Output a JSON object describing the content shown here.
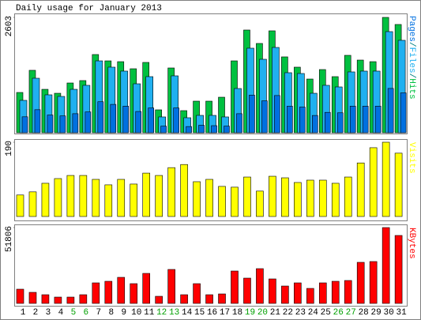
{
  "chart_data": [
    {
      "type": "bar",
      "title": "Daily usage for January 2013",
      "ylim": [
        0,
        2603
      ],
      "yticks": [
        2603
      ],
      "legend_separator": "/",
      "series": [
        {
          "name": "Pages",
          "color": "#0070e0",
          "values": [
            360,
            520,
            400,
            380,
            430,
            470,
            700,
            640,
            600,
            480,
            560,
            150,
            560,
            140,
            170,
            160,
            150,
            430,
            850,
            720,
            840,
            600,
            580,
            390,
            460,
            450,
            600,
            600,
            600,
            1000,
            900
          ]
        },
        {
          "name": "Files",
          "color": "#20b0f0",
          "values": [
            731,
            1230,
            856,
            820,
            980,
            1070,
            1622,
            1480,
            1391,
            1105,
            1266,
            357,
            1284,
            339,
            392,
            392,
            357,
            998,
            1908,
            1658,
            1925,
            1355,
            1337,
            891,
            1070,
            1034,
            1373,
            1391,
            1391,
            2282,
            2086
          ]
        },
        {
          "name": "Hits",
          "color": "#00c040",
          "values": [
            909,
            1409,
            980,
            891,
            1123,
            1177,
            1765,
            1622,
            1604,
            1444,
            1587,
            517,
            1462,
            499,
            713,
            713,
            802,
            1622,
            2318,
            2015,
            2300,
            1712,
            1480,
            1212,
            1426,
            1266,
            1747,
            1640,
            1604,
            2603,
            2443
          ]
        }
      ]
    },
    {
      "type": "bar",
      "ylim": [
        0,
        190
      ],
      "yticks": [
        190
      ],
      "series": [
        {
          "name": "Visits",
          "color": "#ffff00",
          "values": [
            55,
            63,
            85,
            97,
            105,
            105,
            95,
            81,
            95,
            83,
            111,
            105,
            125,
            133,
            89,
            95,
            77,
            75,
            101,
            65,
            103,
            99,
            87,
            93,
            93,
            85,
            101,
            137,
            176,
            190,
            162
          ]
        }
      ]
    },
    {
      "type": "bar",
      "ylim": [
        0,
        51806
      ],
      "yticks": [
        51806
      ],
      "categories": [
        "1",
        "2",
        "3",
        "4",
        "5",
        "6",
        "7",
        "8",
        "9",
        "10",
        "11",
        "12",
        "13",
        "14",
        "15",
        "16",
        "17",
        "18",
        "19",
        "20",
        "21",
        "22",
        "23",
        "24",
        "25",
        "26",
        "27",
        "28",
        "29",
        "30",
        "31"
      ],
      "category_color": "#000000",
      "highlight_color": "#00a000",
      "highlighted": [
        4,
        5,
        11,
        12,
        18,
        19,
        25,
        26
      ],
      "series": [
        {
          "name": "KBytes",
          "color": "#ff0000",
          "values": [
            9714,
            7555,
            5936,
            4317,
            4317,
            5936,
            14031,
            15110,
            17808,
            13491,
            20506,
            4857,
            23204,
            5936,
            13491,
            5936,
            6476,
            22125,
            17268,
            23744,
            16729,
            11873,
            14031,
            10254,
            14031,
            15110,
            15650,
            28062,
            28601,
            51806,
            46410
          ]
        }
      ]
    }
  ]
}
